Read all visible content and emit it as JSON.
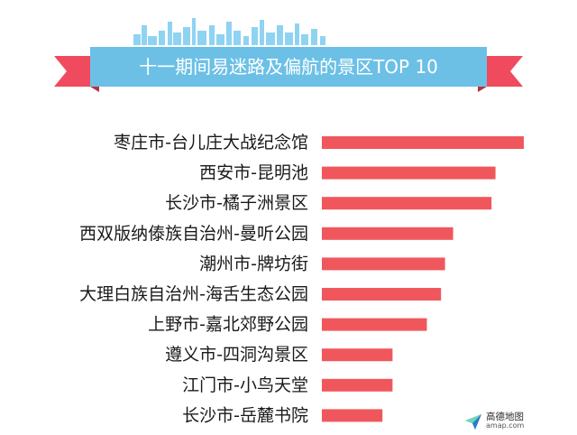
{
  "title": "十一期间易迷路及偏航的景区TOP 10",
  "colors": {
    "banner": "#6cc0e6",
    "skyline": "#8fd3f2",
    "ribbon_end": "#f04a5e",
    "bar": "#f0575c",
    "label": "#1a1a1a"
  },
  "logo": {
    "name": "高德地图",
    "url": "amap.com",
    "icon": "paper-plane-icon"
  },
  "chart_data": {
    "type": "bar",
    "orientation": "horizontal",
    "categories": [
      "枣庄市-台儿庄大战纪念馆",
      "西安市-昆明池",
      "长沙市-橘子洲景区",
      "西双版纳傣族自治州-曼听公园",
      "潮州市-牌坊街",
      "大理白族自治州-海舌生态公园",
      "上野市-嘉北郊野公园",
      "遵义市-四洞沟景区",
      "江门市-小鸟天堂",
      "长沙市-岳麓书院"
    ],
    "values": [
      100,
      86,
      84,
      65,
      61,
      59,
      52,
      35,
      35,
      30
    ],
    "xlim": [
      0,
      100
    ],
    "grid": false,
    "legend": false
  }
}
